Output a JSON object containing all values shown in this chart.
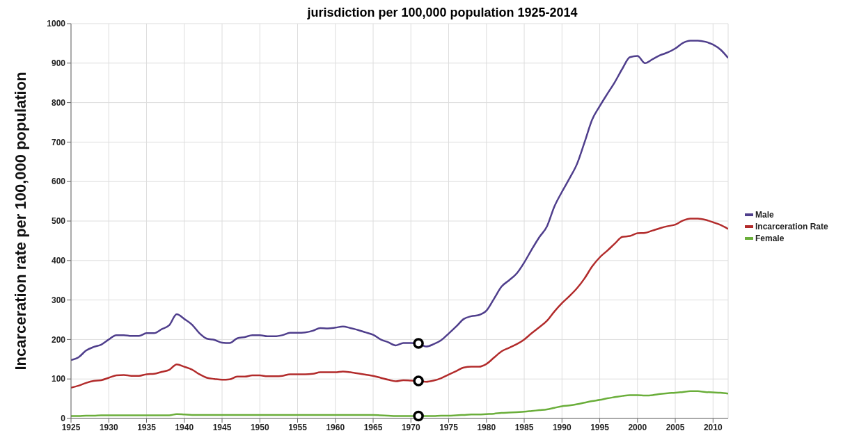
{
  "chart_data": {
    "type": "line",
    "title": "jurisdiction per 100,000 population 1925-2014",
    "ylabel": "Incarceration rate per 100,000 population",
    "x": [
      1925,
      1926,
      1927,
      1928,
      1929,
      1930,
      1931,
      1932,
      1933,
      1934,
      1935,
      1936,
      1937,
      1938,
      1939,
      1940,
      1941,
      1942,
      1943,
      1944,
      1945,
      1946,
      1947,
      1948,
      1949,
      1950,
      1951,
      1952,
      1953,
      1954,
      1955,
      1956,
      1957,
      1958,
      1959,
      1960,
      1961,
      1962,
      1963,
      1964,
      1965,
      1966,
      1967,
      1968,
      1969,
      1970,
      1971,
      1972,
      1973,
      1974,
      1975,
      1976,
      1977,
      1978,
      1979,
      1980,
      1981,
      1982,
      1983,
      1984,
      1985,
      1986,
      1987,
      1988,
      1989,
      1990,
      1991,
      1992,
      1993,
      1994,
      1995,
      1996,
      1997,
      1998,
      1999,
      2000,
      2001,
      2002,
      2003,
      2004,
      2005,
      2006,
      2007,
      2008,
      2009,
      2010,
      2011,
      2012
    ],
    "series": [
      {
        "name": "Male",
        "color": "#4f3e8c",
        "values": [
          148,
          155,
          172,
          181,
          187,
          200,
          211,
          211,
          209,
          209,
          216,
          216,
          226,
          236,
          264,
          252,
          238,
          216,
          202,
          199,
          192,
          191,
          203,
          206,
          211,
          211,
          208,
          208,
          211,
          217,
          217,
          218,
          222,
          229,
          228,
          230,
          233,
          229,
          224,
          218,
          212,
          200,
          193,
          185,
          191,
          191,
          190,
          182,
          188,
          198,
          215,
          233,
          252,
          259,
          262,
          273,
          303,
          334,
          350,
          367,
          395,
          428,
          459,
          486,
          537,
          574,
          608,
          645,
          700,
          757,
          791,
          822,
          852,
          886,
          915,
          918,
          900,
          910,
          920,
          927,
          937,
          951,
          957,
          957,
          954,
          947,
          934,
          913
        ]
      },
      {
        "name": "Incarceration Rate",
        "color": "#b22b2b",
        "values": [
          78,
          83,
          90,
          95,
          97,
          103,
          109,
          110,
          108,
          108,
          112,
          113,
          118,
          123,
          137,
          131,
          124,
          112,
          103,
          100,
          98,
          99,
          106,
          106,
          109,
          109,
          107,
          107,
          108,
          112,
          112,
          112,
          113,
          117,
          117,
          117,
          119,
          117,
          114,
          111,
          108,
          103,
          98,
          94,
          97,
          96,
          95,
          93,
          96,
          102,
          111,
          120,
          129,
          131,
          131,
          138,
          154,
          170,
          179,
          188,
          200,
          216,
          231,
          247,
          271,
          292,
          310,
          330,
          355,
          385,
          408,
          425,
          443,
          460,
          462,
          469,
          470,
          476,
          482,
          487,
          491,
          501,
          506,
          506,
          503,
          497,
          490,
          480
        ]
      },
      {
        "name": "Female",
        "color": "#6aae3a",
        "values": [
          6,
          6,
          7,
          7,
          8,
          8,
          8,
          8,
          8,
          8,
          8,
          8,
          8,
          8,
          11,
          10,
          9,
          9,
          9,
          9,
          9,
          9,
          9,
          9,
          9,
          9,
          9,
          9,
          9,
          9,
          9,
          9,
          9,
          9,
          9,
          9,
          9,
          9,
          9,
          9,
          9,
          8,
          7,
          6,
          6,
          6,
          6,
          6,
          6,
          7,
          7,
          8,
          9,
          10,
          10,
          11,
          12,
          14,
          15,
          16,
          17,
          19,
          21,
          23,
          27,
          31,
          33,
          36,
          40,
          44,
          47,
          51,
          54,
          57,
          59,
          59,
          58,
          59,
          62,
          64,
          65,
          67,
          69,
          69,
          67,
          66,
          65,
          63
        ]
      },
      {
        "type": "scatter",
        "marker": "circle",
        "color": "#000000",
        "values": [
          null,
          null,
          null,
          null,
          null,
          null,
          null,
          null,
          null,
          null,
          null,
          null,
          null,
          null,
          null,
          null,
          null,
          null,
          null,
          null,
          null,
          null,
          null,
          null,
          null,
          null,
          null,
          null,
          null,
          null,
          null,
          null,
          null,
          null,
          null,
          null,
          null,
          null,
          null,
          null,
          null,
          null,
          null,
          null,
          null,
          null,
          190,
          null,
          null,
          null,
          null,
          null,
          null,
          null,
          null,
          null,
          null,
          null,
          null,
          null,
          null,
          null,
          null,
          null,
          null,
          null,
          null,
          null,
          null,
          null,
          null,
          null,
          null,
          null,
          null,
          null,
          null,
          null,
          null,
          null,
          null,
          null,
          null,
          null,
          null,
          null,
          null,
          null
        ]
      },
      {
        "type": "scatter",
        "marker": "circle",
        "color": "#000000",
        "values": [
          null,
          null,
          null,
          null,
          null,
          null,
          null,
          null,
          null,
          null,
          null,
          null,
          null,
          null,
          null,
          null,
          null,
          null,
          null,
          null,
          null,
          null,
          null,
          null,
          null,
          null,
          null,
          null,
          null,
          null,
          null,
          null,
          null,
          null,
          null,
          null,
          null,
          null,
          null,
          null,
          null,
          null,
          null,
          null,
          null,
          null,
          95,
          null,
          null,
          null,
          null,
          null,
          null,
          null,
          null,
          null,
          null,
          null,
          null,
          null,
          null,
          null,
          null,
          null,
          null,
          null,
          null,
          null,
          null,
          null,
          null,
          null,
          null,
          null,
          null,
          null,
          null,
          null,
          null,
          null,
          null,
          null,
          null,
          null,
          null,
          null,
          null,
          null
        ]
      },
      {
        "type": "scatter",
        "marker": "circle",
        "color": "#000000",
        "values": [
          null,
          null,
          null,
          null,
          null,
          null,
          null,
          null,
          null,
          null,
          null,
          null,
          null,
          null,
          null,
          null,
          null,
          null,
          null,
          null,
          null,
          null,
          null,
          null,
          null,
          null,
          null,
          null,
          null,
          null,
          null,
          null,
          null,
          null,
          null,
          null,
          null,
          null,
          null,
          null,
          null,
          null,
          null,
          null,
          null,
          null,
          6,
          null,
          null,
          null,
          null,
          null,
          null,
          null,
          null,
          null,
          null,
          null,
          null,
          null,
          null,
          null,
          null,
          null,
          null,
          null,
          null,
          null,
          null,
          null,
          null,
          null,
          null,
          null,
          null,
          null,
          null,
          null,
          null,
          null,
          null,
          null,
          null,
          null,
          null,
          null,
          null,
          null
        ]
      }
    ],
    "xlim": [
      1925,
      2012
    ],
    "xticks": [
      1925,
      1930,
      1935,
      1940,
      1945,
      1950,
      1955,
      1960,
      1965,
      1970,
      1975,
      1980,
      1985,
      1990,
      1995,
      2000,
      2005,
      2010
    ],
    "ylim": [
      0,
      1000
    ],
    "yticks": [
      0,
      100,
      200,
      300,
      400,
      500,
      600,
      700,
      800,
      900,
      1000
    ],
    "grid": true,
    "legend": "right",
    "marker": "none",
    "line_style": "solid"
  }
}
